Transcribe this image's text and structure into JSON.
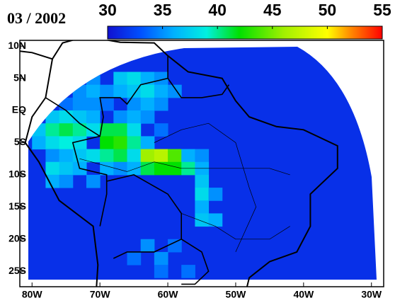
{
  "chart_data": {
    "type": "heatmap",
    "title": "03 / 2002",
    "xlim": [
      -81.8,
      -28.2
    ],
    "ylim": [
      -27.4,
      10.9
    ],
    "xticks": [
      {
        "value": -80,
        "label": "80W"
      },
      {
        "value": -70,
        "label": "70W"
      },
      {
        "value": -60,
        "label": "60W"
      },
      {
        "value": -50,
        "label": "50W"
      },
      {
        "value": -40,
        "label": "40W"
      },
      {
        "value": -30,
        "label": "30W"
      }
    ],
    "yticks": [
      {
        "value": 10,
        "label": "10N"
      },
      {
        "value": 5,
        "label": "5N"
      },
      {
        "value": 0,
        "label": "EQ"
      },
      {
        "value": -5,
        "label": "5S"
      },
      {
        "value": -10,
        "label": "10S"
      },
      {
        "value": -15,
        "label": "15S"
      },
      {
        "value": -20,
        "label": "20S"
      },
      {
        "value": -25,
        "label": "25S"
      }
    ],
    "clim": [
      30,
      55
    ],
    "cticks": [
      30,
      35,
      40,
      45,
      50,
      55
    ],
    "colormap": [
      {
        "value": 30,
        "color": "#1010d0"
      },
      {
        "value": 33,
        "color": "#0050ff"
      },
      {
        "value": 36,
        "color": "#00b0ff"
      },
      {
        "value": 39,
        "color": "#00f0e0"
      },
      {
        "value": 42,
        "color": "#00e000"
      },
      {
        "value": 46,
        "color": "#a0f000"
      },
      {
        "value": 50,
        "color": "#ffff00"
      },
      {
        "value": 52,
        "color": "#ff9000"
      },
      {
        "value": 55,
        "color": "#ff0000"
      }
    ],
    "cell_size": 2,
    "background_value": 31.5,
    "cells": [
      [
        -72,
        6,
        35
      ],
      [
        -68,
        6,
        37
      ],
      [
        -66,
        6,
        38
      ],
      [
        -64,
        6,
        36
      ],
      [
        -62,
        6,
        35
      ],
      [
        -74,
        4,
        35
      ],
      [
        -72,
        4,
        36
      ],
      [
        -70,
        4,
        35
      ],
      [
        -68,
        4,
        36
      ],
      [
        -66,
        4,
        37
      ],
      [
        -64,
        4,
        38
      ],
      [
        -62,
        4,
        36
      ],
      [
        -60,
        4,
        35
      ],
      [
        -76,
        2,
        34
      ],
      [
        -74,
        2,
        35
      ],
      [
        -72,
        2,
        35
      ],
      [
        -70,
        2,
        34
      ],
      [
        -66,
        2,
        35
      ],
      [
        -64,
        2,
        36
      ],
      [
        -62,
        2,
        35
      ],
      [
        -78,
        0,
        37
      ],
      [
        -76,
        0,
        38
      ],
      [
        -74,
        0,
        37
      ],
      [
        -72,
        0,
        36
      ],
      [
        -68,
        0,
        35
      ],
      [
        -66,
        0,
        36
      ],
      [
        -64,
        0,
        35
      ],
      [
        -80,
        -2,
        37
      ],
      [
        -78,
        -2,
        40
      ],
      [
        -76,
        -2,
        41
      ],
      [
        -74,
        -2,
        40
      ],
      [
        -72,
        -2,
        38
      ],
      [
        -70,
        -2,
        41
      ],
      [
        -68,
        -2,
        41
      ],
      [
        -66,
        -2,
        38
      ],
      [
        -62,
        -2,
        34
      ],
      [
        -80,
        -4,
        36
      ],
      [
        -78,
        -4,
        38
      ],
      [
        -76,
        -4,
        39
      ],
      [
        -74,
        -4,
        38
      ],
      [
        -70,
        -4,
        42
      ],
      [
        -68,
        -4,
        43
      ],
      [
        -66,
        -4,
        40
      ],
      [
        -64,
        -4,
        36
      ],
      [
        -78,
        -6,
        35
      ],
      [
        -76,
        -6,
        36
      ],
      [
        -74,
        -6,
        37
      ],
      [
        -72,
        -6,
        38
      ],
      [
        -70,
        -6,
        40
      ],
      [
        -68,
        -6,
        41
      ],
      [
        -66,
        -6,
        38
      ],
      [
        -64,
        -6,
        46
      ],
      [
        -62,
        -6,
        47
      ],
      [
        -60,
        -6,
        44
      ],
      [
        -58,
        -6,
        36
      ],
      [
        -56,
        -6,
        35
      ],
      [
        -78,
        -8,
        38
      ],
      [
        -76,
        -8,
        37
      ],
      [
        -74,
        -8,
        36
      ],
      [
        -70,
        -8,
        36
      ],
      [
        -68,
        -8,
        35
      ],
      [
        -66,
        -8,
        36
      ],
      [
        -64,
        -8,
        41
      ],
      [
        -62,
        -8,
        42
      ],
      [
        -60,
        -8,
        42
      ],
      [
        -58,
        -8,
        40
      ],
      [
        -56,
        -8,
        36
      ],
      [
        -78,
        -10,
        36
      ],
      [
        -76,
        -10,
        35
      ],
      [
        -72,
        -10,
        35
      ],
      [
        -56,
        -10,
        37
      ],
      [
        -56,
        -12,
        38
      ],
      [
        -54,
        -12,
        35
      ],
      [
        -56,
        -14,
        36
      ],
      [
        -56,
        -16,
        37
      ],
      [
        -54,
        -16,
        36
      ],
      [
        -64,
        -20,
        35
      ],
      [
        -60,
        -20,
        34
      ],
      [
        -66,
        -22,
        34
      ],
      [
        -62,
        -22,
        35
      ],
      [
        -62,
        -24,
        34
      ],
      [
        -58,
        -24,
        34
      ]
    ]
  }
}
